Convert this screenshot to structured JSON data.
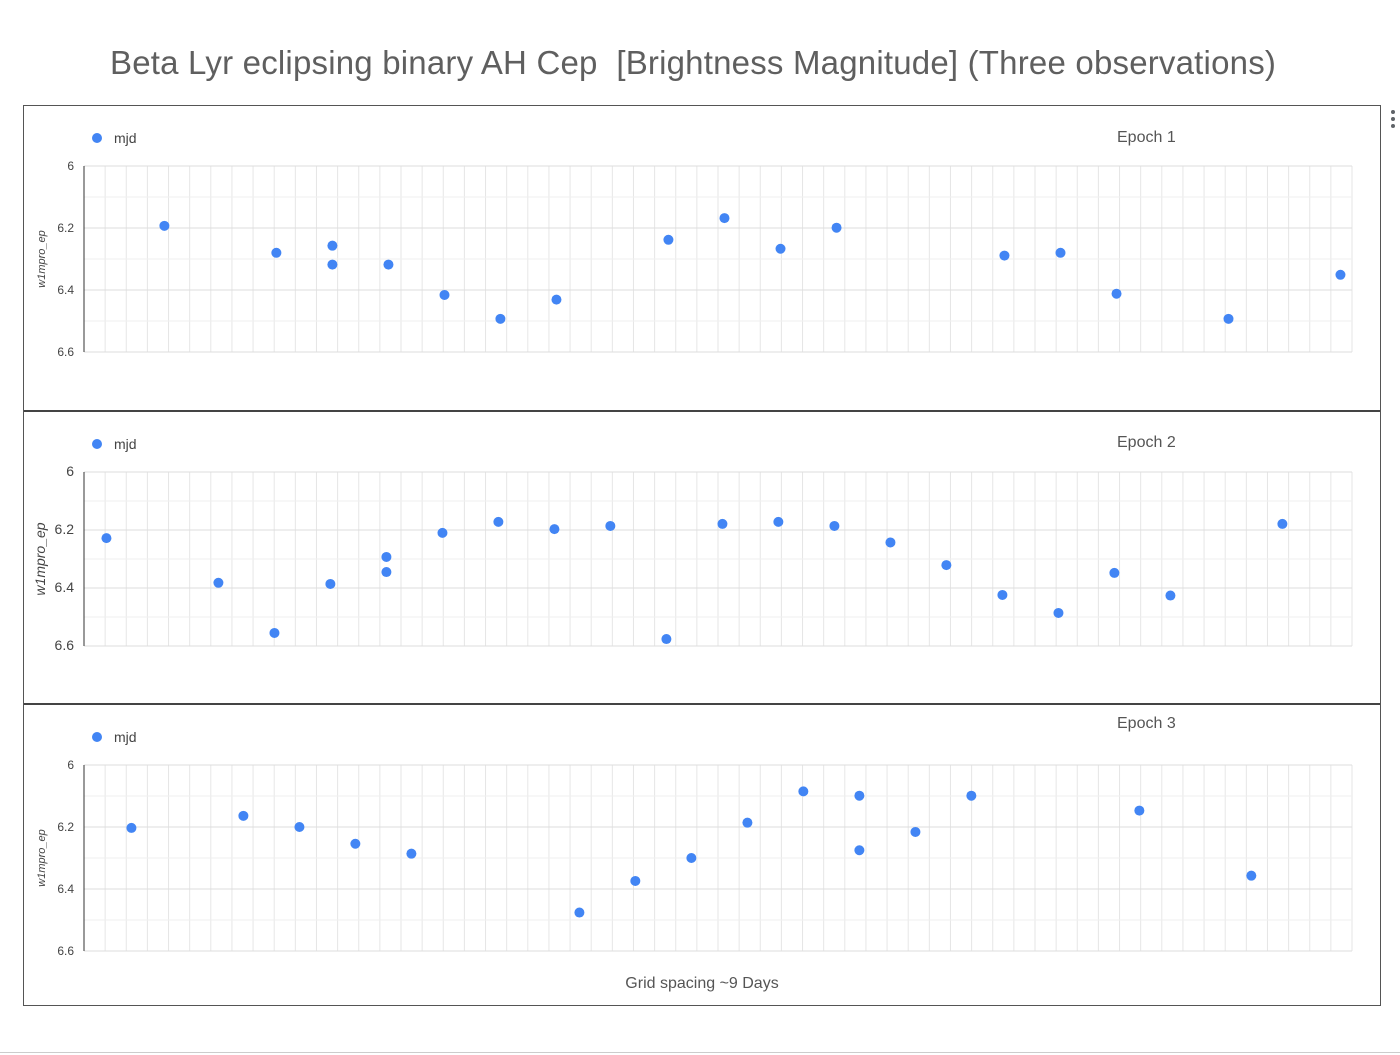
{
  "title": "Beta Lyr eclipsing binary AH Cep  [Brightness Magnitude] (Three observations)",
  "menu_icon": "more-vert-icon",
  "colors": {
    "point": "#4285f4",
    "grid": "#e6e6e6",
    "axis": "#333333",
    "text": "#555555"
  },
  "footer_note": "Grid spacing ~9 Days",
  "chart_data": [
    {
      "type": "scatter",
      "panel_label": "Epoch 1",
      "legend": "mjd",
      "legend_position": "top-left",
      "ylabel": "w1mpro_ep",
      "ylim": [
        6,
        6.6
      ],
      "y_reversed": true,
      "y_ticks": [
        "6",
        "6.2",
        "6.4",
        "6.6"
      ],
      "xlim": [
        0,
        1
      ],
      "grid": true,
      "points": [
        {
          "x": 0.0634,
          "y": 6.193
        },
        {
          "x": 0.1517,
          "y": 6.28
        },
        {
          "x": 0.1959,
          "y": 6.257
        },
        {
          "x": 0.1959,
          "y": 6.318
        },
        {
          "x": 0.2401,
          "y": 6.318
        },
        {
          "x": 0.2843,
          "y": 6.416
        },
        {
          "x": 0.3284,
          "y": 6.493
        },
        {
          "x": 0.3726,
          "y": 6.431
        },
        {
          "x": 0.4609,
          "y": 6.238
        },
        {
          "x": 0.5051,
          "y": 6.168
        },
        {
          "x": 0.5493,
          "y": 6.267
        },
        {
          "x": 0.5935,
          "y": 6.199
        },
        {
          "x": 0.7259,
          "y": 6.289
        },
        {
          "x": 0.7701,
          "y": 6.28
        },
        {
          "x": 0.8143,
          "y": 6.412
        },
        {
          "x": 0.9026,
          "y": 6.493
        },
        {
          "x": 0.9909,
          "y": 6.351
        }
      ]
    },
    {
      "type": "scatter",
      "panel_label": "Epoch 2",
      "legend": "mjd",
      "legend_position": "top-left",
      "ylabel": "w1mpro_ep",
      "ylim": [
        6,
        6.6
      ],
      "y_reversed": true,
      "y_ticks": [
        "6",
        "6.2",
        "6.4",
        "6.6"
      ],
      "xlim": [
        0,
        1
      ],
      "grid": true,
      "points": [
        {
          "x": 0.0177,
          "y": 6.228
        },
        {
          "x": 0.106,
          "y": 6.382
        },
        {
          "x": 0.1502,
          "y": 6.555
        },
        {
          "x": 0.1943,
          "y": 6.386
        },
        {
          "x": 0.2385,
          "y": 6.293
        },
        {
          "x": 0.2385,
          "y": 6.345
        },
        {
          "x": 0.2827,
          "y": 6.21
        },
        {
          "x": 0.3268,
          "y": 6.172
        },
        {
          "x": 0.371,
          "y": 6.197
        },
        {
          "x": 0.4151,
          "y": 6.186
        },
        {
          "x": 0.4593,
          "y": 6.576
        },
        {
          "x": 0.5035,
          "y": 6.179
        },
        {
          "x": 0.5476,
          "y": 6.172
        },
        {
          "x": 0.5918,
          "y": 6.186
        },
        {
          "x": 0.636,
          "y": 6.243
        },
        {
          "x": 0.6801,
          "y": 6.321
        },
        {
          "x": 0.7243,
          "y": 6.424
        },
        {
          "x": 0.7685,
          "y": 6.486
        },
        {
          "x": 0.8126,
          "y": 6.348
        },
        {
          "x": 0.8568,
          "y": 6.426
        },
        {
          "x": 0.9451,
          "y": 6.179
        }
      ]
    },
    {
      "type": "scatter",
      "panel_label": "Epoch 3",
      "legend": "mjd",
      "legend_position": "top-left",
      "ylabel": "w1mpro_ep",
      "ylim": [
        6,
        6.6
      ],
      "y_reversed": true,
      "y_ticks": [
        "6",
        "6.2",
        "6.4",
        "6.6"
      ],
      "xlim": [
        0,
        1
      ],
      "grid": true,
      "points": [
        {
          "x": 0.0374,
          "y": 6.203
        },
        {
          "x": 0.1257,
          "y": 6.164
        },
        {
          "x": 0.1699,
          "y": 6.2
        },
        {
          "x": 0.214,
          "y": 6.254
        },
        {
          "x": 0.2582,
          "y": 6.286
        },
        {
          "x": 0.3907,
          "y": 6.476
        },
        {
          "x": 0.4348,
          "y": 6.374
        },
        {
          "x": 0.479,
          "y": 6.3
        },
        {
          "x": 0.5232,
          "y": 6.186
        },
        {
          "x": 0.5673,
          "y": 6.085
        },
        {
          "x": 0.6115,
          "y": 6.099
        },
        {
          "x": 0.6115,
          "y": 6.275
        },
        {
          "x": 0.6557,
          "y": 6.216
        },
        {
          "x": 0.6998,
          "y": 6.099
        },
        {
          "x": 0.8323,
          "y": 6.147
        },
        {
          "x": 0.9206,
          "y": 6.357
        }
      ]
    }
  ]
}
